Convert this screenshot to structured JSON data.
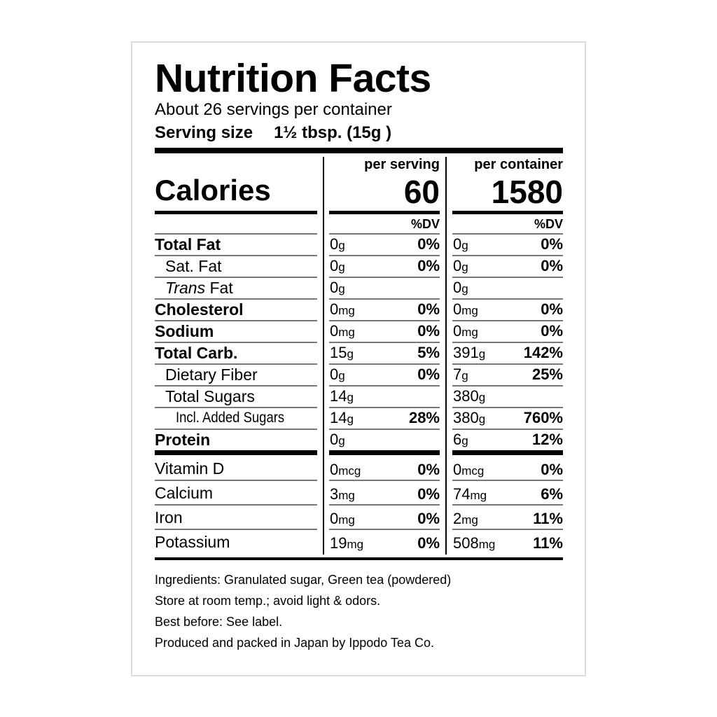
{
  "title": "Nutrition Facts",
  "servings": "About 26 servings per container",
  "serving_size": {
    "label": "Serving size",
    "value": "1½ tbsp.",
    "grams": "(15g )"
  },
  "columns": {
    "per_serving": "per serving",
    "per_container": "per container",
    "dv": "%DV"
  },
  "calories": {
    "label": "Calories",
    "per_serving": "60",
    "per_container": "1580"
  },
  "nutrients": [
    {
      "label": "Total Fat",
      "bold": true,
      "indent": 0,
      "s_amt": "0",
      "s_unit": "g",
      "s_dv": "0%",
      "c_amt": "0",
      "c_unit": "g",
      "c_dv": "0%"
    },
    {
      "label": "Sat. Fat",
      "bold": false,
      "indent": 1,
      "s_amt": "0",
      "s_unit": "g",
      "s_dv": "0%",
      "c_amt": "0",
      "c_unit": "g",
      "c_dv": "0%"
    },
    {
      "label": "Fat",
      "italic_prefix": "Trans",
      "bold": false,
      "indent": 1,
      "s_amt": "0",
      "s_unit": "g",
      "s_dv": "",
      "c_amt": "0",
      "c_unit": "g",
      "c_dv": ""
    },
    {
      "label": "Cholesterol",
      "bold": true,
      "indent": 0,
      "s_amt": "0",
      "s_unit": "mg",
      "s_dv": "0%",
      "c_amt": "0",
      "c_unit": "mg",
      "c_dv": "0%"
    },
    {
      "label": "Sodium",
      "bold": true,
      "indent": 0,
      "s_amt": "0",
      "s_unit": "mg",
      "s_dv": "0%",
      "c_amt": "0",
      "c_unit": "mg",
      "c_dv": "0%"
    },
    {
      "label": "Total Carb.",
      "bold": true,
      "indent": 0,
      "s_amt": "15",
      "s_unit": "g",
      "s_dv": "5%",
      "c_amt": "391",
      "c_unit": "g",
      "c_dv": "142%"
    },
    {
      "label": "Dietary Fiber",
      "bold": false,
      "indent": 1,
      "s_amt": "0",
      "s_unit": "g",
      "s_dv": "0%",
      "c_amt": "7",
      "c_unit": "g",
      "c_dv": "25%"
    },
    {
      "label": "Total Sugars",
      "bold": false,
      "indent": 1,
      "s_amt": "14",
      "s_unit": "g",
      "s_dv": "",
      "c_amt": "380",
      "c_unit": "g",
      "c_dv": ""
    },
    {
      "label": "Incl. Added Sugars",
      "bold": false,
      "indent": 2,
      "s_amt": "14",
      "s_unit": "g",
      "s_dv": "28%",
      "c_amt": "380",
      "c_unit": "g",
      "c_dv": "760%"
    },
    {
      "label": "Protein",
      "bold": true,
      "indent": 0,
      "s_amt": "0",
      "s_unit": "g",
      "s_dv": "",
      "c_amt": "6",
      "c_unit": "g",
      "c_dv": "12%"
    }
  ],
  "vitamins": [
    {
      "label": "Vitamin D",
      "s_amt": "0",
      "s_unit": "mcg",
      "s_dv": "0%",
      "c_amt": "0",
      "c_unit": "mcg",
      "c_dv": "0%"
    },
    {
      "label": "Calcium",
      "s_amt": "3",
      "s_unit": "mg",
      "s_dv": "0%",
      "c_amt": "74",
      "c_unit": "mg",
      "c_dv": "6%"
    },
    {
      "label": "Iron",
      "s_amt": "0",
      "s_unit": "mg",
      "s_dv": "0%",
      "c_amt": "2",
      "c_unit": "mg",
      "c_dv": "11%"
    },
    {
      "label": "Potassium",
      "s_amt": "19",
      "s_unit": "mg",
      "s_dv": "0%",
      "c_amt": "508",
      "c_unit": "mg",
      "c_dv": "11%"
    }
  ],
  "footer": [
    "Ingredients: Granulated sugar, Green tea (powdered)",
    "Store at room temp.; avoid light & odors.",
    "Best before: See label.",
    "Produced and packed in Japan by Ippodo Tea Co."
  ]
}
